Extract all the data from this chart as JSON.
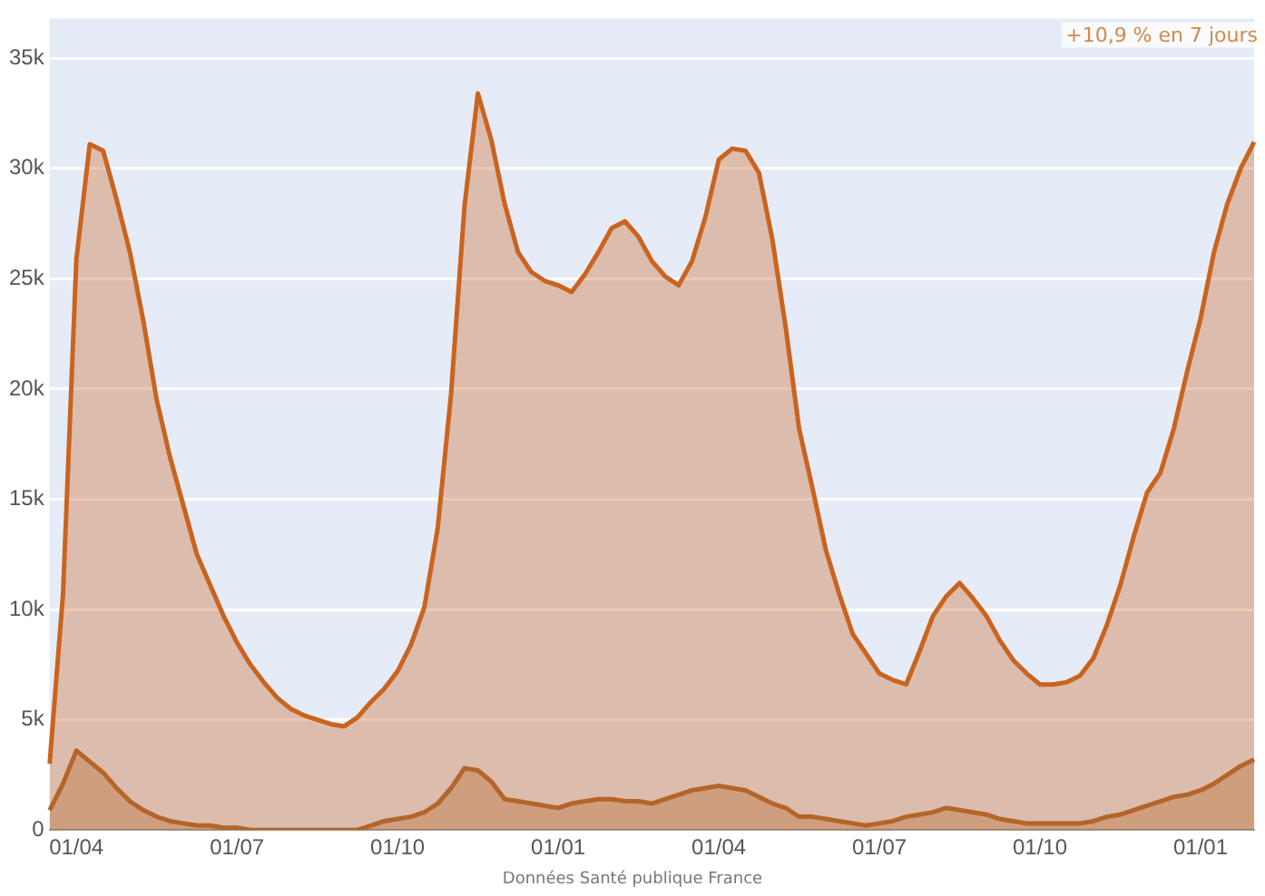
{
  "chart_data": {
    "type": "area",
    "ylim": [
      0,
      36800
    ],
    "categories": [
      null,
      null,
      "01/04",
      null,
      null,
      null,
      null,
      null,
      null,
      null,
      null,
      null,
      null,
      null,
      "01/07",
      null,
      null,
      null,
      null,
      null,
      null,
      null,
      null,
      null,
      null,
      null,
      "01/10",
      null,
      null,
      null,
      null,
      null,
      null,
      null,
      null,
      null,
      null,
      null,
      "01/01",
      null,
      null,
      null,
      null,
      null,
      null,
      null,
      null,
      null,
      null,
      null,
      "01/04",
      null,
      null,
      null,
      null,
      null,
      null,
      null,
      null,
      null,
      null,
      null,
      "01/07",
      null,
      null,
      null,
      null,
      null,
      null,
      null,
      null,
      null,
      null,
      null,
      "01/10",
      null,
      null,
      null,
      null,
      null,
      null,
      null,
      null,
      null,
      null,
      null,
      "01/01",
      null,
      null,
      null,
      null
    ],
    "yticks": [
      {
        "value": 0,
        "label": "0"
      },
      {
        "value": 5000,
        "label": "5k"
      },
      {
        "value": 10000,
        "label": "10k"
      },
      {
        "value": 15000,
        "label": "15k"
      },
      {
        "value": 20000,
        "label": "20k"
      },
      {
        "value": 25000,
        "label": "25k"
      },
      {
        "value": 30000,
        "label": "30k"
      },
      {
        "value": 35000,
        "label": "35k"
      }
    ],
    "grid": "y",
    "legend": false,
    "marker": "none",
    "line_style": "solid",
    "series": [
      {
        "color": "#c9641f",
        "values": [
          3000,
          10700,
          25900,
          31100,
          30800,
          28600,
          26200,
          23100,
          19500,
          16900,
          14700,
          12500,
          11100,
          9700,
          8500,
          7500,
          6700,
          6000,
          5500,
          5200,
          5000,
          4800,
          4700,
          5100,
          5800,
          6400,
          7200,
          8400,
          10100,
          13700,
          19800,
          28300,
          33400,
          31300,
          28400,
          26200,
          25300,
          24900,
          24700,
          24400,
          25200,
          26200,
          27300,
          27600,
          26900,
          25800,
          25100,
          24700,
          25800,
          27800,
          30400,
          30900,
          30800,
          29800,
          26800,
          22800,
          18200,
          15500,
          12700,
          10700,
          8900,
          8000,
          7100,
          6800,
          6600,
          8100,
          9700,
          10600,
          11200,
          10500,
          9700,
          8600,
          7700,
          7100,
          6600,
          6600,
          6700,
          7000,
          7800,
          9300,
          11100,
          13300,
          15300,
          16200,
          18200,
          20800,
          23200,
          26200,
          28400,
          30000,
          31200
        ]
      },
      {
        "color": "#a9662e",
        "values": [
          900,
          2100,
          3600,
          3100,
          2600,
          1900,
          1300,
          900,
          600,
          400,
          300,
          200,
          200,
          100,
          100,
          0,
          0,
          0,
          0,
          0,
          0,
          0,
          0,
          0,
          200,
          400,
          500,
          600,
          800,
          1200,
          1900,
          2800,
          2700,
          2200,
          1400,
          1300,
          1200,
          1100,
          1000,
          1200,
          1300,
          1400,
          1400,
          1300,
          1300,
          1200,
          1400,
          1600,
          1800,
          1900,
          2000,
          1900,
          1800,
          1500,
          1200,
          1000,
          600,
          600,
          500,
          400,
          300,
          200,
          300,
          400,
          600,
          700,
          800,
          1000,
          900,
          800,
          700,
          500,
          400,
          300,
          300,
          300,
          300,
          300,
          400,
          600,
          700,
          900,
          1100,
          1300,
          1500,
          1600,
          1800,
          2100,
          2500,
          2900,
          3200
        ]
      }
    ],
    "annotations": [
      "+10,9 % en 7 jours",
      "Données Santé publique France"
    ]
  }
}
